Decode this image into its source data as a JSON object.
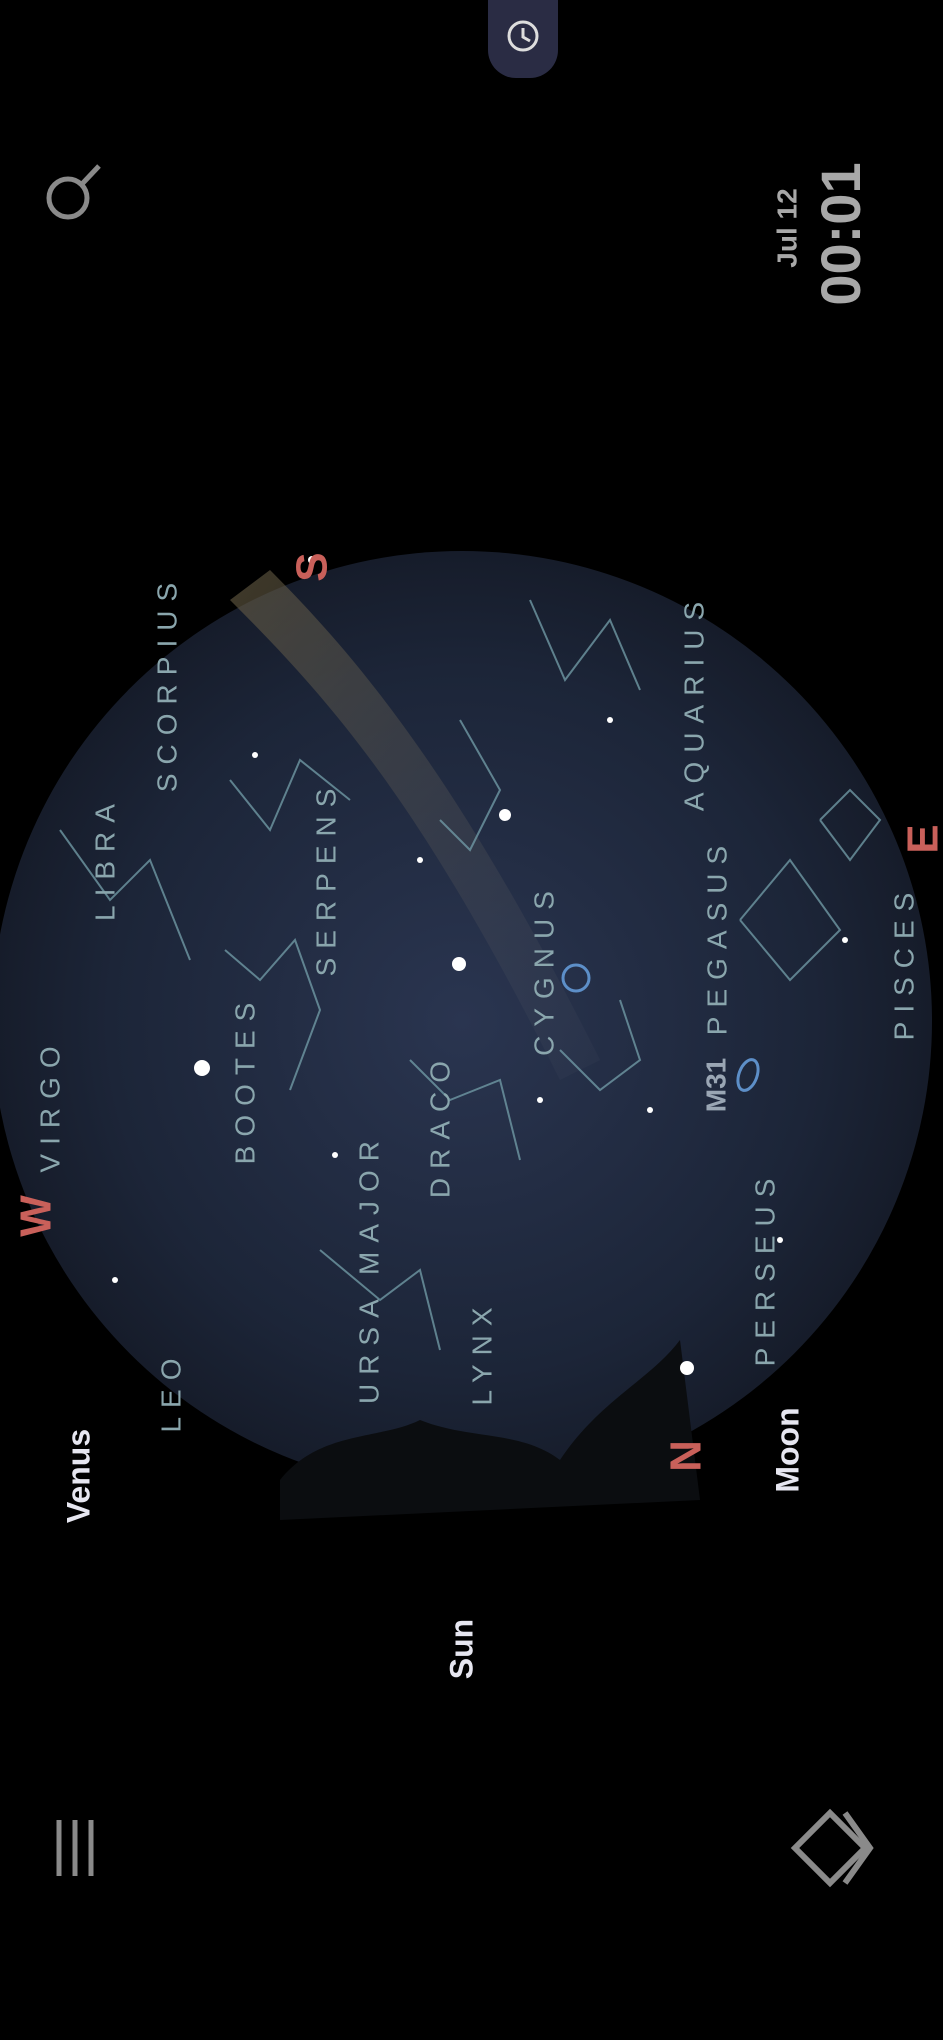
{
  "status": {
    "date": "Jul 12",
    "time": "00:01"
  },
  "sky": {
    "directions": [
      "S",
      "E",
      "W",
      "N"
    ],
    "constellations": [
      "SCORPIUS",
      "LIBRA",
      "VIRGO",
      "LEO",
      "BOOTES",
      "SERPENS",
      "URSA MAJOR",
      "LYNX",
      "DRACO",
      "CYGNUS",
      "PEGASUS",
      "AQUARIUS",
      "PISCES",
      "PERSEUS"
    ],
    "deep_sky": [
      "M31"
    ],
    "planets": [
      "Venus",
      "Sun",
      "Moon"
    ]
  }
}
